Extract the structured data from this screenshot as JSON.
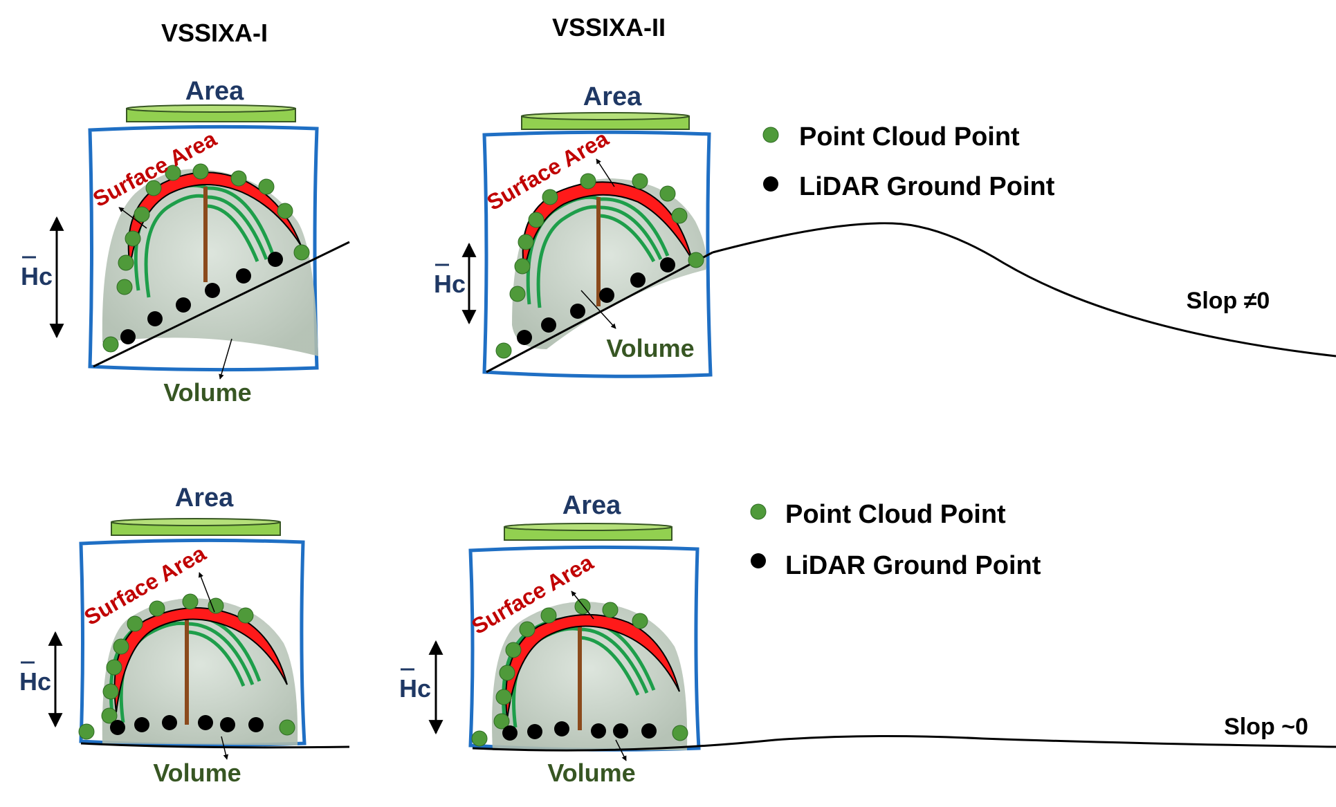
{
  "titles": {
    "left": "VSSIXA-I",
    "right": "VSSIXA-II"
  },
  "labels": {
    "area": "Area",
    "surface_area": "Surface Area",
    "volume": "Volume",
    "hc_bar": "H",
    "hc_sub": "c"
  },
  "legend_top": {
    "cloud": "Point Cloud Point",
    "ground": "LiDAR Ground Point"
  },
  "legend_bottom": {
    "cloud": "Point Cloud Point",
    "ground": "LiDAR Ground Point"
  },
  "slopes": {
    "top": "Slop ≠0",
    "bottom": "Slop ~0"
  },
  "colors": {
    "box": "#1f6fc4",
    "canopy": "#c8d3c8",
    "crown_red": "#ff1a1a",
    "branch": "#1e9e4a",
    "trunk": "#8b4a1c",
    "disk": "#92d050",
    "cloud_point": "#4f9a3a",
    "ground_point": "#000000"
  }
}
